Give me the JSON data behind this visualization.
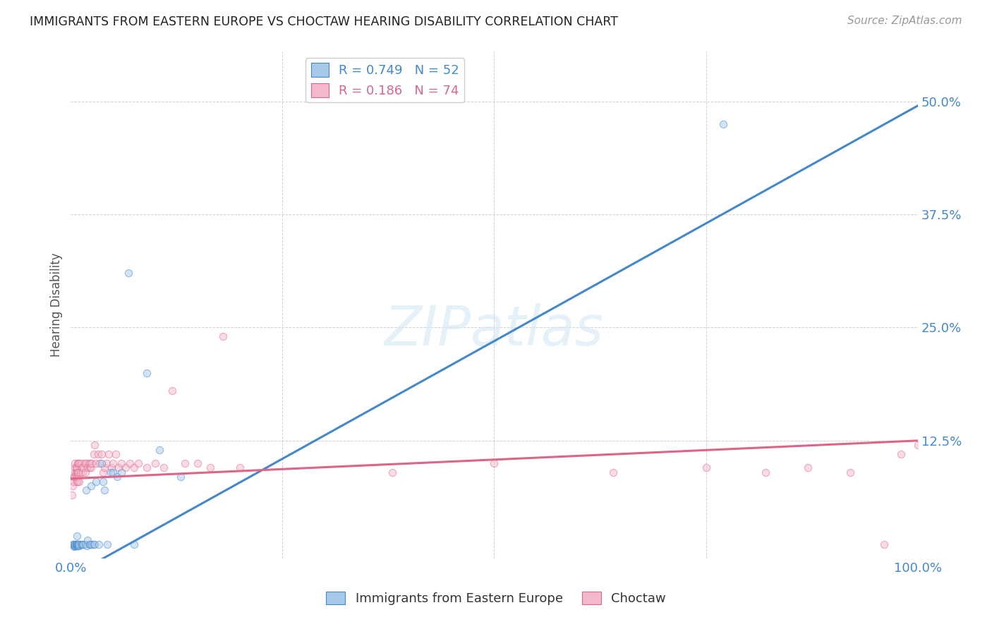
{
  "title": "IMMIGRANTS FROM EASTERN EUROPE VS CHOCTAW HEARING DISABILITY CORRELATION CHART",
  "source": "Source: ZipAtlas.com",
  "ylabel": "Hearing Disability",
  "xlim": [
    0.0,
    1.0
  ],
  "ylim": [
    -0.005,
    0.555
  ],
  "xticks": [
    0.0,
    0.25,
    0.5,
    0.75,
    1.0
  ],
  "xticklabels": [
    "0.0%",
    "",
    "",
    "",
    "100.0%"
  ],
  "yticks": [
    0.125,
    0.25,
    0.375,
    0.5
  ],
  "yticklabels": [
    "12.5%",
    "25.0%",
    "37.5%",
    "50.0%"
  ],
  "watermark": "ZIPatlas",
  "legend_r1": "R = 0.749",
  "legend_n1": "N = 52",
  "legend_r2": "R = 0.186",
  "legend_n2": "N = 74",
  "blue_color": "#a8c8e8",
  "pink_color": "#f4b8cc",
  "blue_line_color": "#4488cc",
  "pink_line_color": "#dd6688",
  "blue_edge_color": "#4488cc",
  "pink_edge_color": "#dd6688",
  "scatter_alpha": 0.5,
  "scatter_size": 55,
  "blue_line_slope": 0.52,
  "blue_line_intercept": -0.025,
  "pink_line_slope": 0.042,
  "pink_line_intercept": 0.083,
  "blue_points_x": [
    0.002,
    0.003,
    0.004,
    0.004,
    0.005,
    0.005,
    0.005,
    0.006,
    0.006,
    0.006,
    0.007,
    0.007,
    0.007,
    0.007,
    0.008,
    0.008,
    0.008,
    0.009,
    0.009,
    0.009,
    0.01,
    0.01,
    0.012,
    0.013,
    0.014,
    0.015,
    0.017,
    0.018,
    0.019,
    0.02,
    0.022,
    0.023,
    0.024,
    0.025,
    0.027,
    0.028,
    0.03,
    0.033,
    0.036,
    0.038,
    0.04,
    0.043,
    0.047,
    0.05,
    0.055,
    0.06,
    0.068,
    0.075,
    0.09,
    0.105,
    0.13,
    0.77
  ],
  "blue_points_y": [
    0.01,
    0.01,
    0.008,
    0.009,
    0.01,
    0.009,
    0.01,
    0.009,
    0.01,
    0.01,
    0.009,
    0.01,
    0.01,
    0.02,
    0.009,
    0.009,
    0.01,
    0.009,
    0.01,
    0.01,
    0.009,
    0.01,
    0.01,
    0.01,
    0.01,
    0.01,
    0.01,
    0.07,
    0.009,
    0.015,
    0.01,
    0.01,
    0.075,
    0.01,
    0.01,
    0.01,
    0.08,
    0.01,
    0.1,
    0.08,
    0.07,
    0.01,
    0.09,
    0.09,
    0.085,
    0.09,
    0.31,
    0.01,
    0.2,
    0.115,
    0.085,
    0.475
  ],
  "pink_points_x": [
    0.001,
    0.002,
    0.003,
    0.004,
    0.004,
    0.005,
    0.005,
    0.005,
    0.006,
    0.006,
    0.006,
    0.007,
    0.007,
    0.007,
    0.008,
    0.008,
    0.008,
    0.009,
    0.009,
    0.009,
    0.01,
    0.01,
    0.011,
    0.012,
    0.013,
    0.014,
    0.015,
    0.016,
    0.017,
    0.018,
    0.02,
    0.021,
    0.022,
    0.023,
    0.024,
    0.025,
    0.027,
    0.028,
    0.03,
    0.032,
    0.034,
    0.036,
    0.038,
    0.04,
    0.042,
    0.045,
    0.048,
    0.05,
    0.053,
    0.056,
    0.06,
    0.065,
    0.07,
    0.075,
    0.08,
    0.09,
    0.1,
    0.11,
    0.12,
    0.135,
    0.15,
    0.165,
    0.18,
    0.2,
    0.5,
    0.64,
    0.75,
    0.82,
    0.87,
    0.92,
    0.96,
    0.98,
    1.0,
    0.38
  ],
  "pink_points_y": [
    0.065,
    0.075,
    0.08,
    0.085,
    0.085,
    0.09,
    0.095,
    0.1,
    0.085,
    0.09,
    0.095,
    0.08,
    0.09,
    0.095,
    0.08,
    0.09,
    0.1,
    0.085,
    0.09,
    0.1,
    0.08,
    0.1,
    0.09,
    0.1,
    0.095,
    0.09,
    0.095,
    0.1,
    0.09,
    0.1,
    0.095,
    0.1,
    0.095,
    0.1,
    0.095,
    0.1,
    0.11,
    0.12,
    0.1,
    0.11,
    0.1,
    0.11,
    0.09,
    0.095,
    0.1,
    0.11,
    0.095,
    0.1,
    0.11,
    0.095,
    0.1,
    0.095,
    0.1,
    0.095,
    0.1,
    0.095,
    0.1,
    0.095,
    0.18,
    0.1,
    0.1,
    0.095,
    0.24,
    0.095,
    0.1,
    0.09,
    0.095,
    0.09,
    0.095,
    0.09,
    0.01,
    0.11,
    0.12,
    0.09
  ]
}
